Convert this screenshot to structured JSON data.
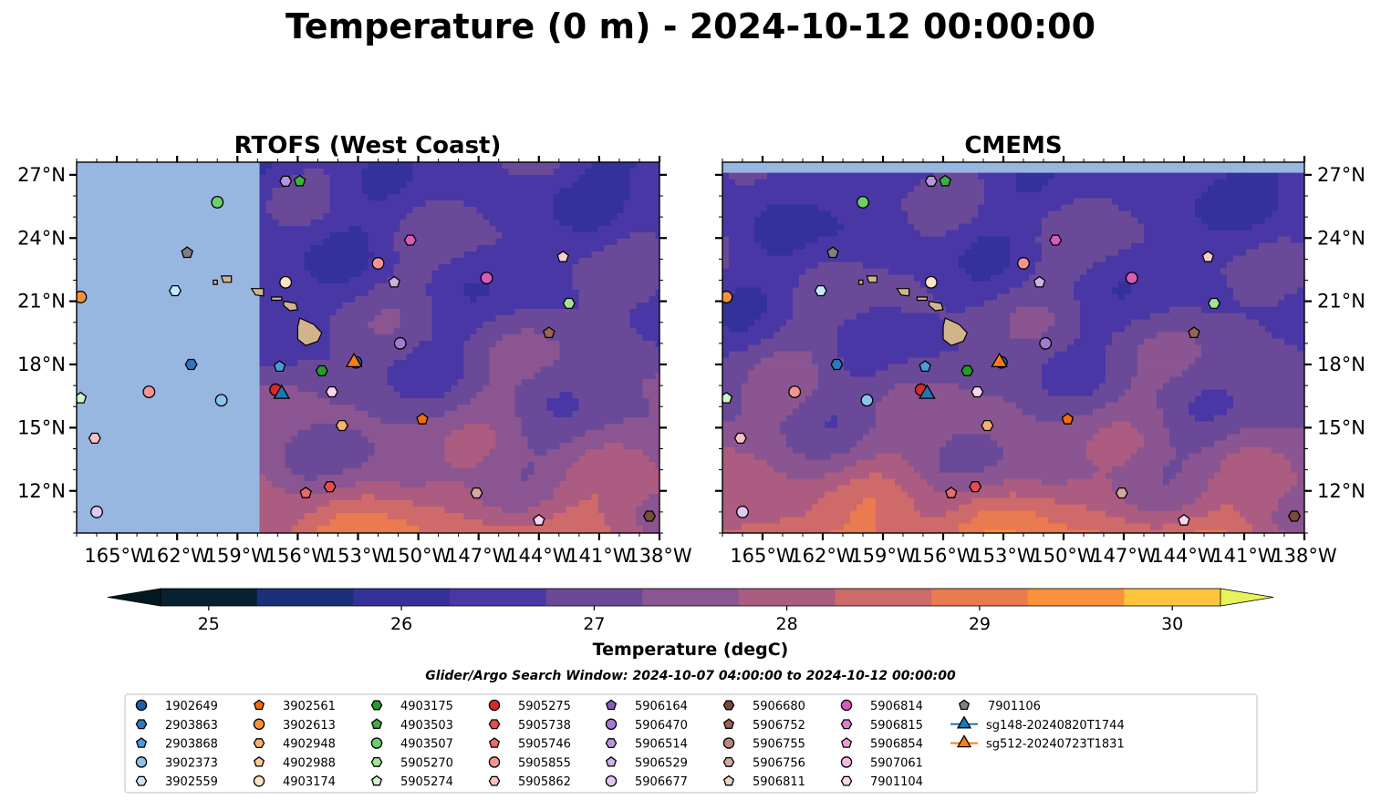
{
  "figure": {
    "title": "Temperature (0 m) - 2024-10-12 00:00:00",
    "search_window": "Glider/Argo Search Window: 2024-10-07 04:00:00 to 2024-10-12 00:00:00"
  },
  "chart_data": [
    {
      "type": "heatmap",
      "title": "RTOFS (West Coast)",
      "xlim": [
        -167,
        -138
      ],
      "ylim": [
        10,
        27.6
      ],
      "x_ticks": [
        "165°W",
        "162°W",
        "159°W",
        "156°W",
        "153°W",
        "150°W",
        "147°W",
        "144°W",
        "141°W",
        "138°W"
      ],
      "y_ticks": [
        "12°N",
        "15°N",
        "18°N",
        "21°N",
        "24°N",
        "27°N"
      ],
      "y_tick_side": "left",
      "domain_west_edge_lon": -157.9,
      "no_data_color": "#97b6e0"
    },
    {
      "type": "heatmap",
      "title": "CMEMS",
      "xlim": [
        -167,
        -138
      ],
      "ylim": [
        10,
        27.6
      ],
      "x_ticks": [
        "165°W",
        "162°W",
        "159°W",
        "156°W",
        "153°W",
        "150°W",
        "147°W",
        "144°W",
        "141°W",
        "138°W"
      ],
      "y_ticks": [
        "12°N",
        "15°N",
        "18°N",
        "21°N",
        "24°N",
        "27°N"
      ],
      "y_tick_side": "right",
      "domain_north_edge_lat": 27.1,
      "no_data_color": "#97b6e0"
    }
  ],
  "colorbar": {
    "label": "Temperature (degC)",
    "ticks": [
      "25",
      "26",
      "27",
      "28",
      "29",
      "30"
    ],
    "range": [
      24.75,
      30.25
    ],
    "colors": [
      "#06212f",
      "#1b307a",
      "#35319a",
      "#4a37a6",
      "#6a4a98",
      "#8a5590",
      "#ab5c80",
      "#cf6a6a",
      "#ea7a50",
      "#fb913c",
      "#fec43c"
    ],
    "extend_low_color": "#041820",
    "extend_high_color": "#e8f25a"
  },
  "legend": {
    "columns": [
      [
        {
          "label": "1902649",
          "marker": "circle",
          "color": "#1f5fa8"
        },
        {
          "label": "2903863",
          "marker": "hexagon",
          "color": "#2f78c0"
        },
        {
          "label": "2903868",
          "marker": "pentagon",
          "color": "#4d9ad8"
        },
        {
          "label": "3902373",
          "marker": "circle",
          "color": "#8cc3ec"
        },
        {
          "label": "3902559",
          "marker": "hexagon",
          "color": "#c7e8fa"
        }
      ],
      [
        {
          "label": "3902561",
          "marker": "pentagon",
          "color": "#f06d0a"
        },
        {
          "label": "3902613",
          "marker": "circle",
          "color": "#f8923a"
        },
        {
          "label": "4902948",
          "marker": "hexagon",
          "color": "#fbb06e"
        },
        {
          "label": "4902988",
          "marker": "pentagon",
          "color": "#fdcc96"
        },
        {
          "label": "4903174",
          "marker": "circle",
          "color": "#fde2c4"
        }
      ],
      [
        {
          "label": "4903175",
          "marker": "hexagon",
          "color": "#279a2a"
        },
        {
          "label": "4903503",
          "marker": "pentagon",
          "color": "#3cb043"
        },
        {
          "label": "4903507",
          "marker": "circle",
          "color": "#6fcd6b"
        },
        {
          "label": "5905270",
          "marker": "hexagon",
          "color": "#a2e39b"
        },
        {
          "label": "5905274",
          "marker": "pentagon",
          "color": "#cdf5c6"
        }
      ],
      [
        {
          "label": "5905275",
          "marker": "circle",
          "color": "#d62a2a"
        },
        {
          "label": "5905738",
          "marker": "hexagon",
          "color": "#e34d4d"
        },
        {
          "label": "5905746",
          "marker": "pentagon",
          "color": "#ea6a6a"
        },
        {
          "label": "5905855",
          "marker": "circle",
          "color": "#f29494"
        },
        {
          "label": "5905862",
          "marker": "hexagon",
          "color": "#f8c3c3"
        }
      ],
      [
        {
          "label": "5906164",
          "marker": "pentagon",
          "color": "#8a5cc0"
        },
        {
          "label": "5906470",
          "marker": "circle",
          "color": "#a27ad0"
        },
        {
          "label": "5906514",
          "marker": "hexagon",
          "color": "#b896de"
        },
        {
          "label": "5906529",
          "marker": "pentagon",
          "color": "#cdb2ea"
        },
        {
          "label": "5906677",
          "marker": "circle",
          "color": "#dccaf2"
        }
      ],
      [
        {
          "label": "5906680",
          "marker": "hexagon",
          "color": "#7a4a3a"
        },
        {
          "label": "5906752",
          "marker": "pentagon",
          "color": "#9a6454"
        },
        {
          "label": "5906755",
          "marker": "circle",
          "color": "#b88878"
        },
        {
          "label": "5906756",
          "marker": "hexagon",
          "color": "#d4ab9e"
        },
        {
          "label": "5906811",
          "marker": "pentagon",
          "color": "#f2d2c8"
        }
      ],
      [
        {
          "label": "5906814",
          "marker": "circle",
          "color": "#d65cb8"
        },
        {
          "label": "5906815",
          "marker": "hexagon",
          "color": "#e27cc8"
        },
        {
          "label": "5906854",
          "marker": "pentagon",
          "color": "#ec9cd6"
        },
        {
          "label": "5907061",
          "marker": "circle",
          "color": "#f4b8e2"
        },
        {
          "label": "7901104",
          "marker": "hexagon",
          "color": "#f9d4ee"
        }
      ],
      [
        {
          "label": "7901106",
          "marker": "pentagon",
          "color": "#808080"
        },
        {
          "label": "sg148-20240820T1744",
          "marker": "triangle",
          "color": "#1f77b4"
        },
        {
          "label": "sg512-20240723T1831",
          "marker": "triangle",
          "color": "#ff7f0e"
        }
      ]
    ]
  },
  "observations": [
    {
      "lon": -155.9,
      "lat": 26.7,
      "marker": "pentagon",
      "color": "#3cb043"
    },
    {
      "lon": -156.6,
      "lat": 26.7,
      "marker": "hexagon",
      "color": "#b896de"
    },
    {
      "lon": -160.0,
      "lat": 25.7,
      "marker": "circle",
      "color": "#6fcd6b"
    },
    {
      "lon": -152.0,
      "lat": 22.8,
      "marker": "circle",
      "color": "#f29494"
    },
    {
      "lon": -150.4,
      "lat": 23.9,
      "marker": "hexagon",
      "color": "#d65cb8"
    },
    {
      "lon": -161.5,
      "lat": 23.3,
      "marker": "pentagon",
      "color": "#808080"
    },
    {
      "lon": -162.1,
      "lat": 21.5,
      "marker": "hexagon",
      "color": "#c7e8fa"
    },
    {
      "lon": -156.6,
      "lat": 21.9,
      "marker": "circle",
      "color": "#fde2c4"
    },
    {
      "lon": -151.2,
      "lat": 21.9,
      "marker": "pentagon",
      "color": "#cdb2ea"
    },
    {
      "lon": -146.6,
      "lat": 22.1,
      "marker": "circle",
      "color": "#d65cb8"
    },
    {
      "lon": -142.8,
      "lat": 23.1,
      "marker": "pentagon",
      "color": "#f2d2c8"
    },
    {
      "lon": -142.5,
      "lat": 20.9,
      "marker": "hexagon",
      "color": "#a2e39b"
    },
    {
      "lon": -166.8,
      "lat": 21.2,
      "marker": "circle",
      "color": "#f8923a"
    },
    {
      "lon": -143.5,
      "lat": 19.5,
      "marker": "pentagon",
      "color": "#9a6454"
    },
    {
      "lon": -150.9,
      "lat": 19.0,
      "marker": "circle",
      "color": "#a27ad0"
    },
    {
      "lon": -161.3,
      "lat": 18.0,
      "marker": "hexagon",
      "color": "#2f78c0"
    },
    {
      "lon": -156.9,
      "lat": 17.9,
      "marker": "pentagon",
      "color": "#4d9ad8"
    },
    {
      "lon": -154.8,
      "lat": 17.7,
      "marker": "hexagon",
      "color": "#279a2a"
    },
    {
      "lon": -153.1,
      "lat": 18.1,
      "marker": "circle",
      "color": "#1f5fa8"
    },
    {
      "lon": -166.8,
      "lat": 16.4,
      "marker": "pentagon",
      "color": "#cdf5c6"
    },
    {
      "lon": -163.4,
      "lat": 16.7,
      "marker": "circle",
      "color": "#f29494"
    },
    {
      "lon": -159.8,
      "lat": 16.3,
      "marker": "circle",
      "color": "#8cc3ec"
    },
    {
      "lon": -157.1,
      "lat": 16.8,
      "marker": "circle",
      "color": "#d62a2a"
    },
    {
      "lon": -154.3,
      "lat": 16.7,
      "marker": "hexagon",
      "color": "#f9d4ee"
    },
    {
      "lon": -153.8,
      "lat": 15.1,
      "marker": "hexagon",
      "color": "#fbb06e"
    },
    {
      "lon": -149.8,
      "lat": 15.4,
      "marker": "pentagon",
      "color": "#f06d0a"
    },
    {
      "lon": -166.1,
      "lat": 14.5,
      "marker": "hexagon",
      "color": "#f8c3c3"
    },
    {
      "lon": -155.6,
      "lat": 11.9,
      "marker": "pentagon",
      "color": "#ea6a6a"
    },
    {
      "lon": -154.4,
      "lat": 12.2,
      "marker": "hexagon",
      "color": "#e34d4d"
    },
    {
      "lon": -147.1,
      "lat": 11.9,
      "marker": "hexagon",
      "color": "#d4ab9e"
    },
    {
      "lon": -166.0,
      "lat": 11.0,
      "marker": "circle",
      "color": "#dccaf2"
    },
    {
      "lon": -144.0,
      "lat": 10.6,
      "marker": "pentagon",
      "color": "#f9d4ee"
    },
    {
      "lon": -138.5,
      "lat": 10.8,
      "marker": "hexagon",
      "color": "#7a4a3a"
    }
  ],
  "gliders": [
    {
      "lon": -156.8,
      "lat": 16.6,
      "marker": "triangle",
      "color": "#1f77b4"
    },
    {
      "lon": -153.2,
      "lat": 18.1,
      "marker": "triangle",
      "color": "#ff7f0e"
    }
  ]
}
